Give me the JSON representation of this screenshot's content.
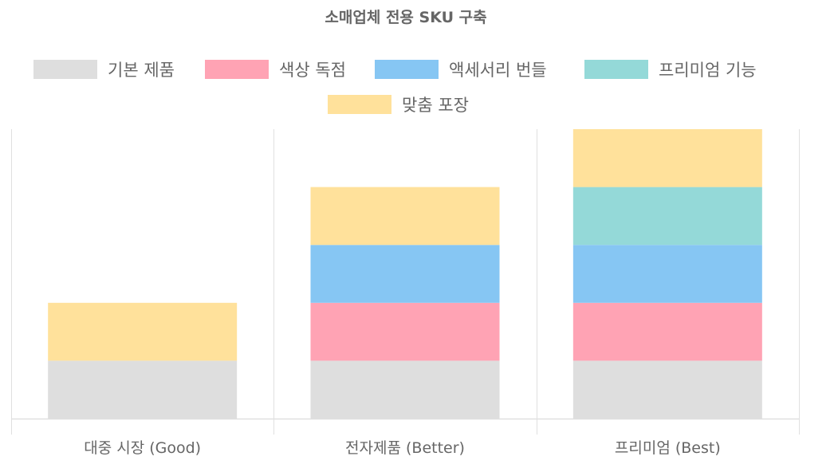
{
  "chart_data": {
    "type": "bar",
    "stacked": true,
    "title": "소매업체 전용 SKU 구축",
    "xlabel": "",
    "ylabel": "",
    "categories": [
      "대중 시장 (Good)",
      "전자제품 (Better)",
      "프리미엄 (Best)"
    ],
    "series": [
      {
        "name": "기본 제품",
        "color": "#dedede",
        "values": [
          1,
          1,
          1
        ]
      },
      {
        "name": "색상 독점",
        "color": "#ffa3b4",
        "values": [
          0,
          1,
          1
        ]
      },
      {
        "name": "액세서리 번들",
        "color": "#86c6f3",
        "values": [
          0,
          1,
          1
        ]
      },
      {
        "name": "프리미엄 기능",
        "color": "#94d9d8",
        "values": [
          0,
          0,
          1
        ]
      },
      {
        "name": "맞춤 포장",
        "color": "#ffe19b",
        "values": [
          1,
          1,
          1
        ]
      }
    ],
    "ylim": [
      0,
      5
    ],
    "y_ticks_visible": false,
    "grid": "vertical",
    "legend_position": "top"
  }
}
